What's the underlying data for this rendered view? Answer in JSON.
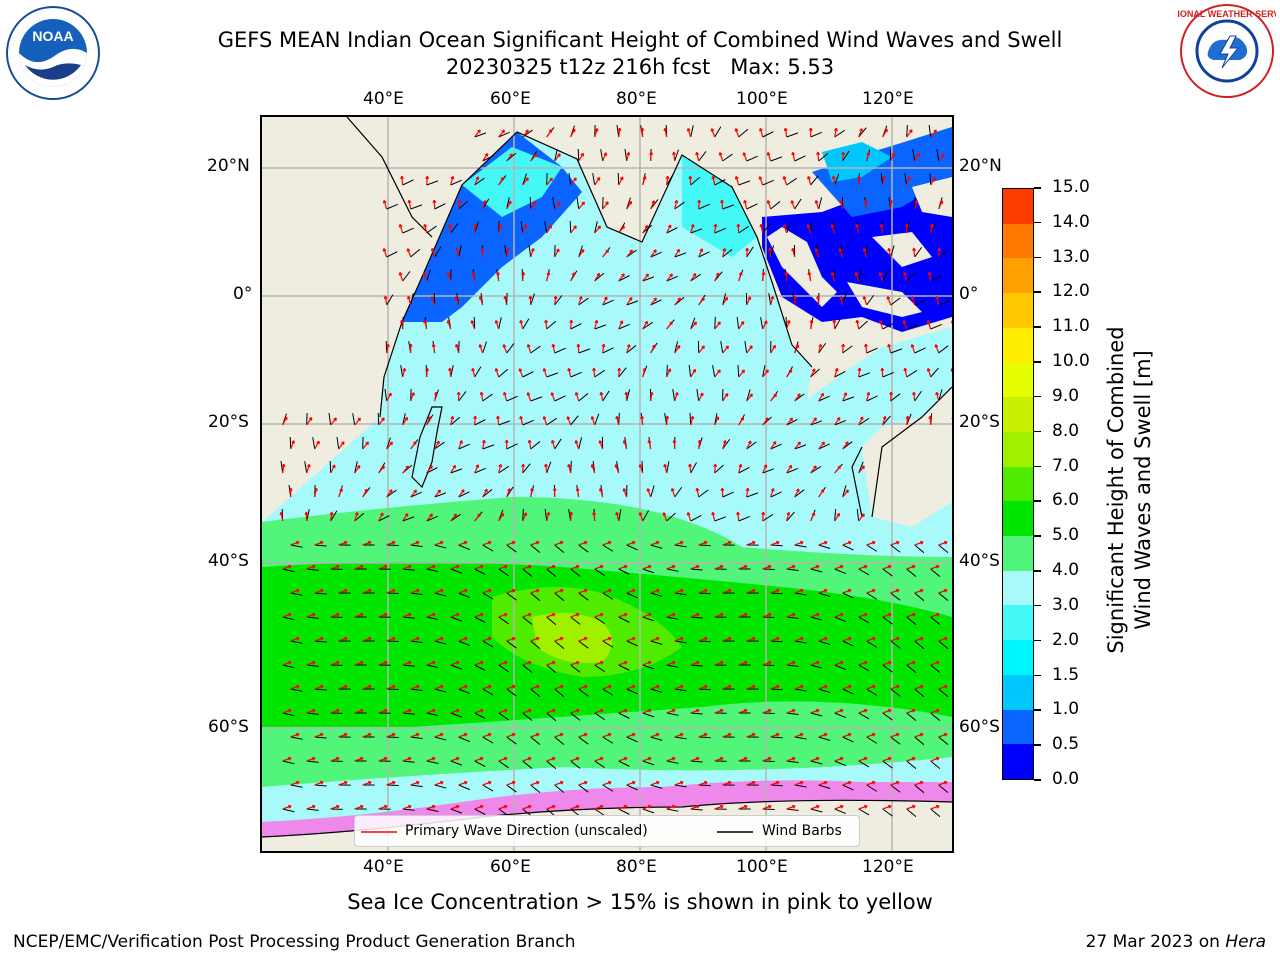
{
  "title": {
    "line1": "GEFS MEAN Indian Ocean Significant Height of Combined Wind Waves and Swell",
    "line2": "20230325 t12z 216h fcst   Max: 5.53"
  },
  "logos": {
    "left": {
      "icon": "noaa-logo",
      "text": "NOAA"
    },
    "right": {
      "icon": "nws-logo",
      "text": "NATIONAL WEATHER SERVICE"
    }
  },
  "map": {
    "lon_ticks_top": [
      "40°E",
      "60°E",
      "80°E",
      "100°E",
      "120°E"
    ],
    "lon_ticks_bottom": [
      "40°E",
      "60°E",
      "80°E",
      "100°E",
      "120°E"
    ],
    "lat_ticks_left": [
      "20°N",
      "0°",
      "20°S",
      "40°S",
      "60°S"
    ],
    "lat_ticks_right": [
      "20°N",
      "0°",
      "20°S",
      "40°S",
      "60°S"
    ],
    "colors": {
      "land": "#efede0",
      "ocean_low": "#a8fafa",
      "grid": "#b4b4b4",
      "arrow": "#ff0000",
      "barb": "#000000"
    }
  },
  "legend": {
    "wave_direction": "Primary Wave Direction (unscaled)",
    "wind_barbs": "Wind Barbs"
  },
  "colorbar": {
    "label_line1": "Significant Height of Combined",
    "label_line2": "Wind Waves and Swell [m]",
    "ticks": [
      "0.0",
      "0.5",
      "1.0",
      "1.5",
      "2.0",
      "3.0",
      "4.0",
      "5.0",
      "6.0",
      "7.0",
      "8.0",
      "9.0",
      "10.0",
      "11.0",
      "12.0",
      "13.0",
      "14.0",
      "15.0"
    ],
    "colors": [
      "#0000ff",
      "#0a64ff",
      "#00c8ff",
      "#00f5ff",
      "#44f8f8",
      "#a8fafa",
      "#50f57a",
      "#00e600",
      "#50ec00",
      "#a0f000",
      "#c8f000",
      "#e6ff00",
      "#ffee00",
      "#ffc800",
      "#ffa000",
      "#ff7800",
      "#ff3c00"
    ]
  },
  "caption": "Sea Ice Concentration > 15% is shown in pink to yellow",
  "footer": {
    "left": "NCEP/EMC/Verification Post Processing Product Generation Branch",
    "right_prefix": "27 Mar 2023 on ",
    "right_host": "Hera"
  }
}
